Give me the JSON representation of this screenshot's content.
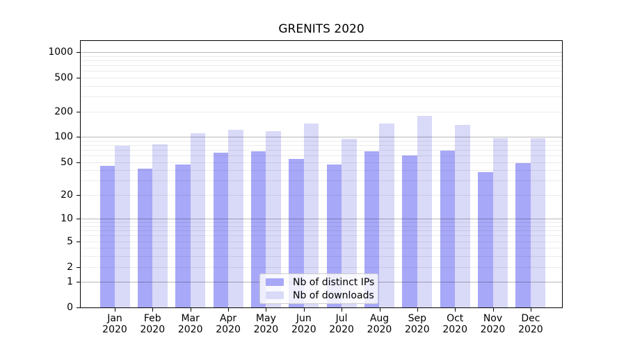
{
  "chart_data": {
    "type": "bar",
    "title": "GRENITS 2020",
    "months": [
      "Jan",
      "Feb",
      "Mar",
      "Apr",
      "May",
      "Jun",
      "Jul",
      "Aug",
      "Sep",
      "Oct",
      "Nov",
      "Dec"
    ],
    "year": "2020",
    "series": [
      {
        "name": "Nb of distinct IPs",
        "color": "#a8a8f8",
        "values": [
          45,
          42,
          47,
          65,
          67,
          55,
          47,
          68,
          60,
          69,
          38,
          49
        ]
      },
      {
        "name": "Nb of downloads",
        "color": "#d9d9f8",
        "values": [
          79,
          82,
          110,
          122,
          116,
          144,
          95,
          144,
          177,
          139,
          97,
          97
        ]
      }
    ],
    "y_scale": "log(value+1)",
    "y_ticks": [
      0,
      1,
      2,
      5,
      10,
      20,
      50,
      100,
      200,
      500,
      1000
    ],
    "y_major_gridlines": [
      1,
      10,
      100,
      1000
    ],
    "y_minor_gridlines": [
      2,
      3,
      4,
      5,
      6,
      7,
      8,
      9,
      20,
      30,
      40,
      50,
      60,
      70,
      80,
      90,
      200,
      300,
      400,
      500,
      600,
      700,
      800,
      900
    ],
    "ylim": [
      0,
      1350
    ],
    "grid": true,
    "legend_position": "lower center",
    "xlabel": "",
    "ylabel": ""
  },
  "colors": {
    "background": "#ffffff",
    "spine": "#000000",
    "major_grid": "#b8b8b8",
    "minor_grid": "#ececec",
    "legend_border": "#cccccc"
  }
}
